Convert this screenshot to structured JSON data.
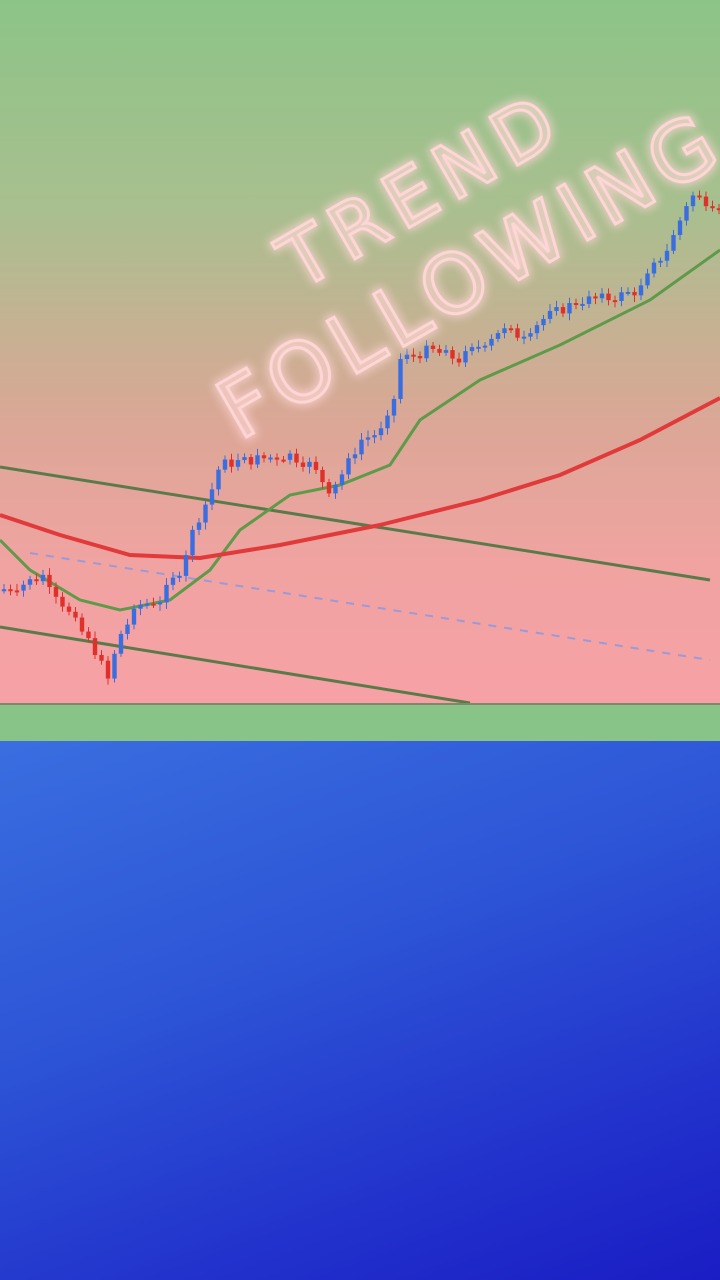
{
  "headline": {
    "line1": "TREND",
    "line2": "FOLLOWING",
    "neon_color": "#ff8a8a"
  },
  "chart_data": {
    "type": "candlestick",
    "title": "",
    "xlabel": "",
    "ylabel": "",
    "grid": false,
    "up_color": "#3a6ee0",
    "down_color": "#e0302a",
    "price_path": [
      [
        0,
        15.7
      ],
      [
        20,
        16.4
      ],
      [
        45,
        17.9
      ],
      [
        70,
        12.1
      ],
      [
        95,
        7.1
      ],
      [
        108,
        2.9
      ],
      [
        120,
        9.3
      ],
      [
        140,
        13.6
      ],
      [
        160,
        14.3
      ],
      [
        180,
        18.6
      ],
      [
        195,
        25
      ],
      [
        210,
        29.3
      ],
      [
        220,
        33.6
      ],
      [
        250,
        34.3
      ],
      [
        290,
        35
      ],
      [
        310,
        33.6
      ],
      [
        330,
        30
      ],
      [
        345,
        32.9
      ],
      [
        360,
        37.1
      ],
      [
        385,
        38.6
      ],
      [
        395,
        43.6
      ],
      [
        400,
        48.6
      ],
      [
        430,
        50
      ],
      [
        460,
        48.6
      ],
      [
        500,
        52.9
      ],
      [
        520,
        52.1
      ],
      [
        545,
        54.6
      ],
      [
        580,
        57.1
      ],
      [
        610,
        57.4
      ],
      [
        640,
        58.6
      ],
      [
        655,
        62.1
      ],
      [
        670,
        65
      ],
      [
        690,
        72.1
      ],
      [
        720,
        70.7
      ]
    ],
    "series": [
      {
        "type": "moving-average",
        "color": "#5e9a4a"
      },
      {
        "type": "moving-average",
        "color": "#e03a3a"
      }
    ]
  },
  "colors": {
    "band": "#88c387",
    "blue_top": "#3a6ee0",
    "blue_bottom": "#1a1dc4"
  }
}
